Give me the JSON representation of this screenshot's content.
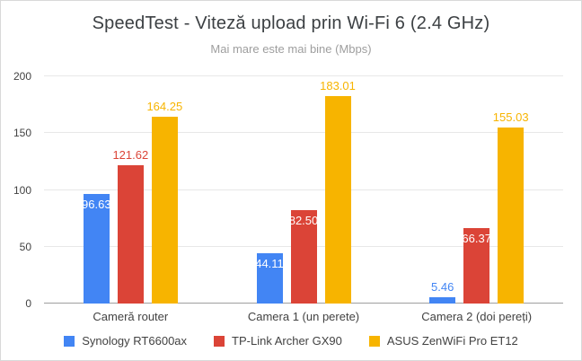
{
  "chart_data": {
    "type": "bar",
    "title": "SpeedTest - Viteză upload prin Wi-Fi 6 (2.4 GHz)",
    "subtitle": "Mai mare este mai bine (Mbps)",
    "categories": [
      "Cameră router",
      "Camera 1 (un perete)",
      "Camera 2 (doi pereți)"
    ],
    "series": [
      {
        "name": "Synology RT6600ax",
        "color": "#4285F4",
        "values": [
          96.63,
          44.11,
          5.46
        ],
        "label_placement": [
          "inside",
          "inside",
          "above"
        ]
      },
      {
        "name": "TP-Link Archer GX90",
        "color": "#DB4437",
        "values": [
          121.62,
          82.5,
          66.37
        ],
        "label_placement": [
          "above",
          "inside",
          "inside"
        ]
      },
      {
        "name": "ASUS ZenWiFi Pro ET12",
        "color": "#F7B400",
        "values": [
          164.25,
          183.01,
          155.03
        ],
        "label_placement": [
          "above",
          "above",
          "above"
        ]
      }
    ],
    "ylim": [
      0,
      200
    ],
    "yticks": [
      0,
      50,
      100,
      150,
      200
    ],
    "grid": true,
    "legend_position": "bottom",
    "value_labels": true,
    "value_decimals": 2
  }
}
